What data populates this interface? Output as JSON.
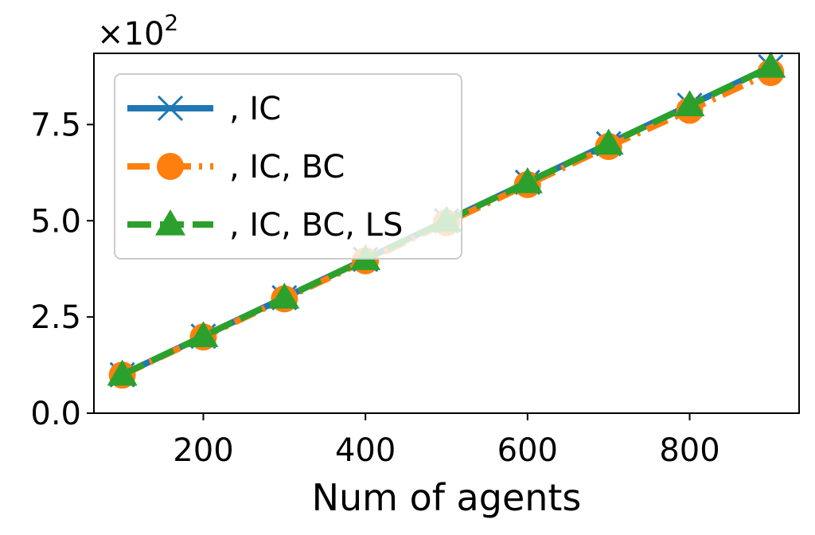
{
  "chart_data": {
    "type": "line",
    "title": "",
    "xlabel": "Num of agents",
    "ylabel": "",
    "y_multiplier": {
      "base": "×10",
      "exponent": "2"
    },
    "xlim": [
      65,
      935
    ],
    "ylim": [
      0,
      9.35
    ],
    "x_ticks": [
      200,
      400,
      600,
      800
    ],
    "x_tick_labels": [
      "200",
      "400",
      "600",
      "800"
    ],
    "y_ticks": [
      0,
      2.5,
      5,
      7.5
    ],
    "y_tick_labels": [
      "0.0",
      "2.5",
      "5.0",
      "7.5"
    ],
    "grid": false,
    "legend_position": "upper-left",
    "x": [
      100,
      200,
      300,
      400,
      500,
      600,
      700,
      800,
      900
    ],
    "series": [
      {
        "name": ", IC",
        "color": "#1f77b4",
        "marker": "x",
        "line_style": "solid",
        "values": [
          1,
          2,
          3,
          4,
          5,
          6,
          7,
          8,
          9
        ]
      },
      {
        "name": ", IC, BC",
        "color": "#ff7f0e",
        "marker": "circle",
        "line_style": "dashdot",
        "values": [
          0.99,
          1.98,
          2.97,
          3.96,
          4.95,
          5.94,
          6.93,
          7.87,
          8.85
        ]
      },
      {
        "name": ", IC, BC, LS",
        "color": "#2ca02c",
        "marker": "triangle",
        "line_style": "dashed",
        "values": [
          1,
          2,
          3,
          4,
          5,
          6,
          7,
          8,
          9
        ]
      }
    ]
  }
}
